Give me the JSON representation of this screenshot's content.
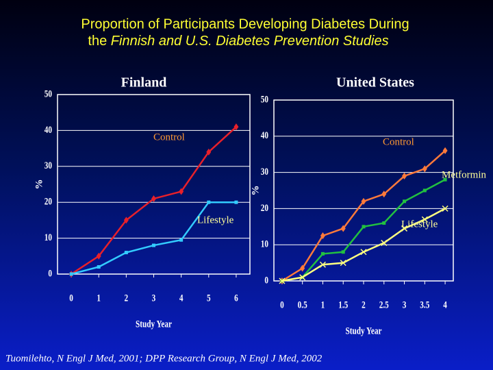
{
  "slide": {
    "title_line1": "Proportion of Participants Developing Diabetes During",
    "title_line2_prefix": "the",
    "title_line2_italic": "Finnish and U.S. Diabetes Prevention Studies",
    "footnote": "Tuomilehto, N Engl J Med, 2001;  DPP Research Group, N Engl J Med, 2002"
  },
  "chart_data": [
    {
      "type": "line",
      "title": "Finland",
      "x_label": "Study Year",
      "y_label": "%",
      "x": [
        0,
        1,
        2,
        3,
        4,
        5,
        6
      ],
      "xlim": [
        -0.5,
        6.5
      ],
      "xticks": [
        0,
        1,
        2,
        3,
        4,
        5,
        6
      ],
      "ylim": [
        0,
        50
      ],
      "yticks": [
        0,
        10,
        20,
        30,
        40,
        50
      ],
      "grid": true,
      "series": [
        {
          "name": "Control",
          "color": "#e8202a",
          "label_color": "#ff9933",
          "values": [
            0,
            5,
            15,
            21,
            23,
            34,
            41
          ]
        },
        {
          "name": "Lifestyle",
          "color": "#33ccff",
          "label_color": "#ffff99",
          "values": [
            0,
            2,
            6,
            8,
            9.5,
            20,
            20
          ]
        }
      ]
    },
    {
      "type": "line",
      "title": "United States",
      "x_label": "Study Year",
      "y_label": "%",
      "x": [
        0,
        0.5,
        1,
        1.5,
        2,
        2.5,
        3,
        3.5,
        4
      ],
      "xlim": [
        -0.2,
        4.2
      ],
      "xticks": [
        0,
        0.5,
        1,
        1.5,
        2,
        2.5,
        3,
        3.5,
        4
      ],
      "ylim": [
        0,
        50
      ],
      "yticks": [
        0,
        10,
        20,
        30,
        40,
        50
      ],
      "grid": true,
      "series": [
        {
          "name": "Control",
          "color": "#ff7a3a",
          "label_color": "#ff9933",
          "values": [
            0,
            3.5,
            12.5,
            14.5,
            22,
            24,
            29,
            31,
            36
          ]
        },
        {
          "name": "Metformin",
          "color": "#22c040",
          "label_color": "#ffff99",
          "values": [
            0,
            1,
            7.5,
            8,
            15,
            16,
            22,
            25,
            28
          ]
        },
        {
          "name": "Lifestyle",
          "color": "#ffff80",
          "label_color": "#ffff99",
          "values": [
            0,
            1,
            4.5,
            5,
            8,
            10.5,
            14.5,
            17,
            20
          ]
        }
      ]
    }
  ]
}
